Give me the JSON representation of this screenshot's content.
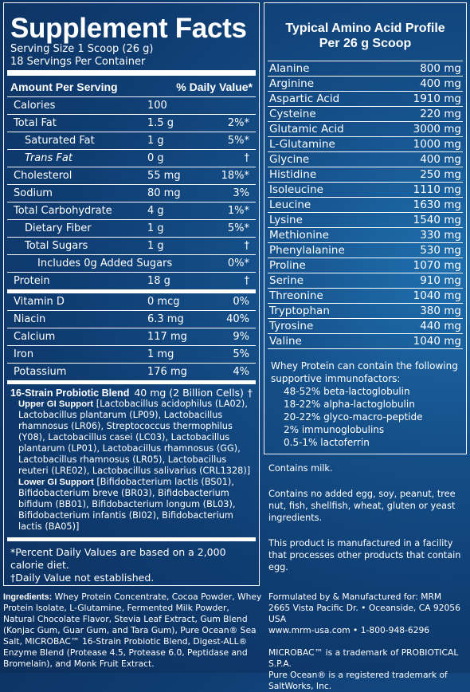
{
  "supplement_facts": {
    "title": "Supplement Facts",
    "serving_size": "Serving Size 1 Scoop (26 g)",
    "servings_per_container": "18 Servings Per Container",
    "header_amount": "Amount Per Serving",
    "header_dv": "% Daily Value*",
    "rows": [
      {
        "name": "Calories",
        "amount": "100",
        "dv": ""
      },
      {
        "name": "Total Fat",
        "amount": "1.5 g",
        "dv": "2%*"
      },
      {
        "name": "Saturated Fat",
        "amount": "1 g",
        "dv": "5%*"
      },
      {
        "name": "Trans Fat",
        "amount": "0 g",
        "dv": "†"
      },
      {
        "name": "Cholesterol",
        "amount": "55 mg",
        "dv": "18%*"
      },
      {
        "name": "Sodium",
        "amount": "80 mg",
        "dv": "3%"
      },
      {
        "name": "Total Carbohydrate",
        "amount": "4 g",
        "dv": "1%*"
      },
      {
        "name": "Dietary Fiber",
        "amount": "1 g",
        "dv": "5%*"
      },
      {
        "name": "Total Sugars",
        "amount": "1 g",
        "dv": "†"
      },
      {
        "name": "Includes 0g Added Sugars",
        "amount": "",
        "dv": "0%*"
      },
      {
        "name": "Protein",
        "amount": "18 g",
        "dv": "†"
      }
    ],
    "vitamin_rows": [
      {
        "name": "Vitamin D",
        "amount": "0 mcg",
        "dv": "0%"
      },
      {
        "name": "Niacin",
        "amount": "6.3 mg",
        "dv": "40%"
      },
      {
        "name": "Calcium",
        "amount": "117 mg",
        "dv": "9%"
      },
      {
        "name": "Iron",
        "amount": "1 mg",
        "dv": "5%"
      },
      {
        "name": "Potassium",
        "amount": "176 mg",
        "dv": "4%"
      }
    ],
    "probiotic_title": "16-Strain Probiotic Blend",
    "probiotic_amount": "40 mg (2 Billion Cells)",
    "probiotic_dv": "†",
    "upper_gi_label": "Upper GI Support",
    "upper_gi_text": "[Lactobacillus acidophilus (LA02), Lactobacillus plantarum (LP09), Lactobacillus rhamnosus (LR06), Streptococcus thermophilus (Y08), Lactobacillus casei (LC03), Lactobacillus plantarum (LP01), Lactobacillus rhamnosus (GG), Lactobacillus rhamnosus (LR05), Lactobacillus reuteri (LRE02), Lactobacillus salivarius (CRL1328)]",
    "lower_gi_label": "Lower GI Support",
    "lower_gi_text": "[Bifidobacterium lactis (BS01), Bifidobacterium breve (BR03), Bifidobacterium bifidum (BB01), Bifidobacterium longum (BL03), Bifidobacterium infantis (BI02), Bifidobacterium lactis (BA05)]",
    "footnote_1": "*Percent Daily Values are based on a 2,000 calorie diet.",
    "footnote_2": "†Daily Value not established."
  },
  "amino_profile": {
    "title_line1": "Typical Amino Acid Profile",
    "title_line2": "Per 26 g Scoop",
    "rows": [
      {
        "name": "Alanine",
        "amount": "800 mg"
      },
      {
        "name": "Arginine",
        "amount": "400 mg"
      },
      {
        "name": "Aspartic Acid",
        "amount": "1910 mg"
      },
      {
        "name": "Cysteine",
        "amount": "220 mg"
      },
      {
        "name": "Glutamic Acid",
        "amount": "3000 mg"
      },
      {
        "name": "L-Glutamine",
        "amount": "1000 mg"
      },
      {
        "name": "Glycine",
        "amount": "400 mg"
      },
      {
        "name": "Histidine",
        "amount": "250 mg"
      },
      {
        "name": "Isoleucine",
        "amount": "1110 mg"
      },
      {
        "name": "Leucine",
        "amount": "1630 mg"
      },
      {
        "name": "Lysine",
        "amount": "1540 mg"
      },
      {
        "name": "Methionine",
        "amount": "330 mg"
      },
      {
        "name": "Phenylalanine",
        "amount": "530 mg"
      },
      {
        "name": "Proline",
        "amount": "1070 mg"
      },
      {
        "name": "Serine",
        "amount": "910 mg"
      },
      {
        "name": "Threonine",
        "amount": "1040 mg"
      },
      {
        "name": "Tryptophan",
        "amount": "380 mg"
      },
      {
        "name": "Tyrosine",
        "amount": "440 mg"
      },
      {
        "name": "Valine",
        "amount": "1040 mg"
      }
    ],
    "whey_intro": "Whey Protein can contain the following supportive immunofactors:",
    "whey_items": [
      "48-52% beta-lactoglobulin",
      "18-22% alpha-lactoglobulin",
      "20-22% glyco-macro-peptide",
      "2% immunoglobulins",
      "0.5-1% lactoferrin"
    ]
  },
  "notes": {
    "contains_milk": "Contains milk.",
    "allergen_free": "Contains no added egg, soy, peanut, tree nut, fish, shellfish, wheat, gluten or yeast ingredients.",
    "facility": "This product is manufactured in a facility that processes other products that contain egg."
  },
  "ingredients": {
    "label": "Ingredients:",
    "text": "Whey Protein Concentrate, Cocoa Powder, Whey Protein Isolate, L-Glutamine, Fermented Milk Powder, Natural Chocolate Flavor, Stevia Leaf Extract, Gum Blend (Konjac Gum, Guar Gum, and Tara Gum), Pure Ocean® Sea Salt, MICROBAC™ 16-Strain Probiotic Blend, Digest-ALL® Enzyme Blend (Protease 4.5, Protease 6.0, Peptidase and Bromelain), and Monk Fruit Extract."
  },
  "manufacturer": {
    "line1": "Formulated by & Manufactured for: MRM",
    "line2": "2665 Vista Pacific Dr. • Oceanside, CA 92056 USA",
    "line3": "www.mrm-usa.com • 1-800-948-6296",
    "tm1": "MICROBAC™ is a trademark of PROBIOTICAL S.P.A.",
    "tm2": "Pure Ocean® is a registered trademark of SaltWorks, Inc."
  }
}
